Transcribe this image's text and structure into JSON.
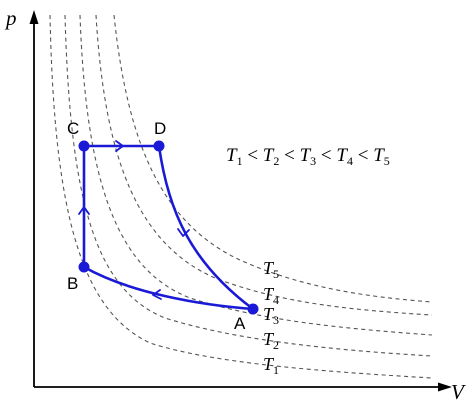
{
  "axes": {
    "x_label": "V",
    "y_label": "p"
  },
  "isotherms": [
    {
      "name": "T",
      "sub": "1"
    },
    {
      "name": "T",
      "sub": "2"
    },
    {
      "name": "T",
      "sub": "3"
    },
    {
      "name": "T",
      "sub": "4"
    },
    {
      "name": "T",
      "sub": "5"
    }
  ],
  "points": {
    "A": "A",
    "B": "B",
    "C": "C",
    "D": "D"
  },
  "relation": {
    "parts": [
      {
        "t": "T",
        "s": "1"
      },
      {
        "op": "< "
      },
      {
        "t": "T",
        "s": "2"
      },
      {
        "op": "< "
      },
      {
        "t": "T",
        "s": "3"
      },
      {
        "op": "<"
      },
      {
        "t": "T",
        "s": "4"
      },
      {
        "op": "<"
      },
      {
        "t": "T",
        "s": "5"
      }
    ]
  },
  "colors": {
    "cycle": "#1a1ad6",
    "isotherm": "#555555",
    "axis": "#000000"
  }
}
